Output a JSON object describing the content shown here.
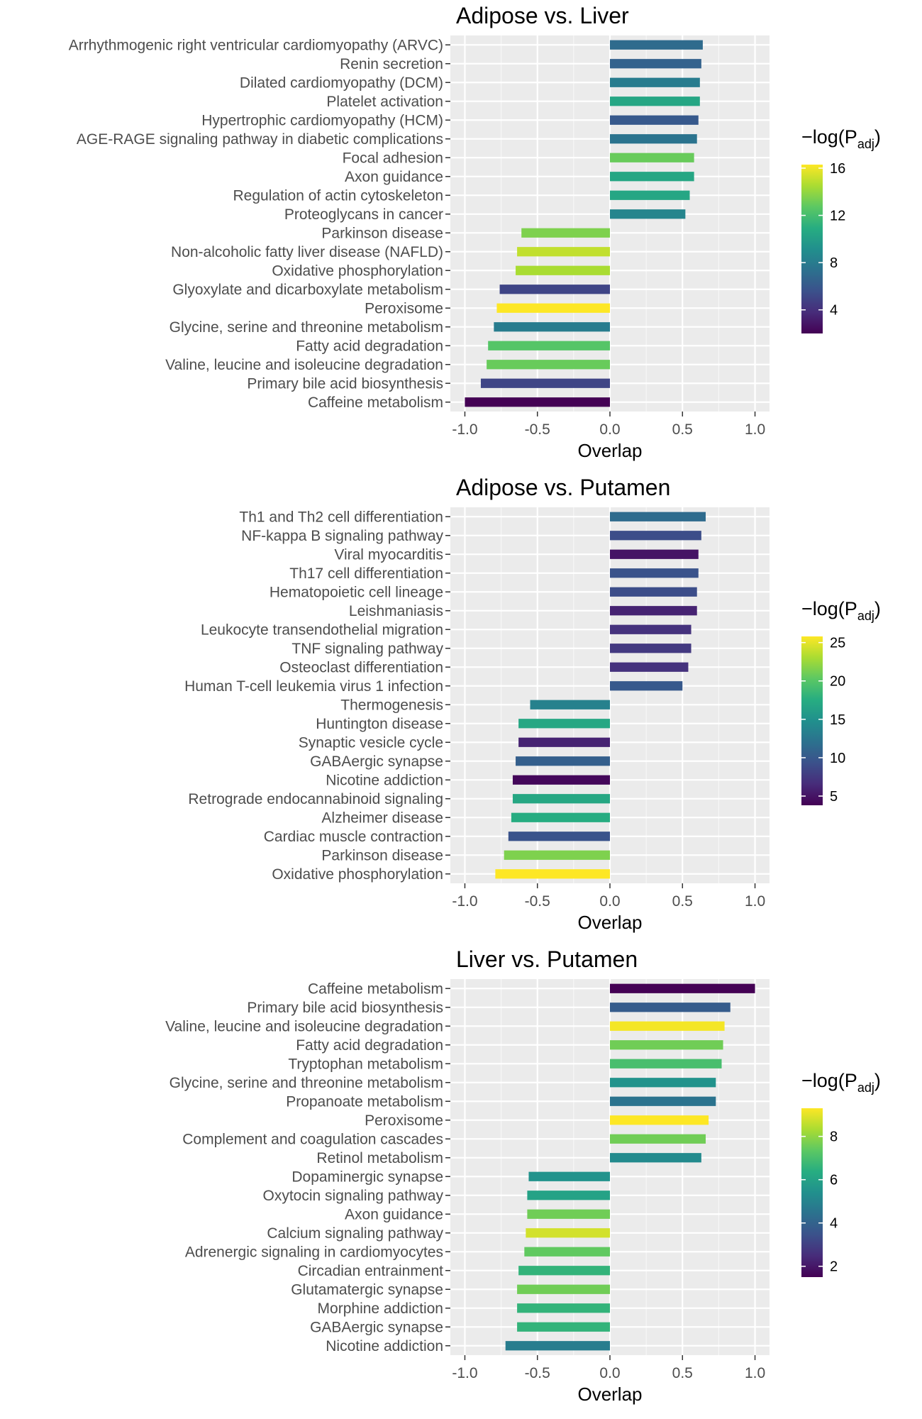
{
  "colorscale": [
    "#440154",
    "#472c7a",
    "#3b518b",
    "#2c718e",
    "#21908d",
    "#27ad81",
    "#5cc863",
    "#aadc32",
    "#fde725"
  ],
  "chart_data": [
    {
      "type": "bar",
      "orientation": "horizontal",
      "title": "Adipose vs. Liver",
      "xlabel": "Overlap",
      "xlim": [
        -1.1,
        1.1
      ],
      "xticks": [
        -1.0,
        -0.5,
        0.0,
        0.5,
        1.0
      ],
      "xtick_labels": [
        "-1.0",
        "-0.5",
        "0.0",
        "0.5",
        "1.0"
      ],
      "legend": {
        "title_main": "−log(P",
        "title_sub": "adj",
        "title_close": ")",
        "min": 2.0,
        "max": 16.3,
        "ticks": [
          4,
          8,
          12,
          16
        ],
        "tick_labels": [
          "4",
          "8",
          "12",
          "16"
        ]
      },
      "categories": [
        "Arrhythmogenic right ventricular cardiomyopathy (ARVC)",
        "Renin secretion",
        "Dilated cardiomyopathy (DCM)",
        "Platelet activation",
        "Hypertrophic cardiomyopathy (HCM)",
        "AGE-RAGE signaling pathway in diabetic complications",
        "Focal adhesion",
        "Axon guidance",
        "Regulation of actin cytoskeleton",
        "Proteoglycans in cancer",
        "Parkinson disease",
        "Non-alcoholic fatty liver disease (NAFLD)",
        "Oxidative phosphorylation",
        "Glyoxylate and dicarboxylate metabolism",
        "Peroxisome",
        "Glycine, serine and threonine metabolism",
        "Fatty acid degradation",
        "Valine, leucine and isoleucine degradation",
        "Primary bile acid biosynthesis",
        "Caffeine metabolism"
      ],
      "values": [
        0.64,
        0.63,
        0.62,
        0.62,
        0.61,
        0.6,
        0.58,
        0.58,
        0.55,
        0.52,
        -0.61,
        -0.64,
        -0.65,
        -0.76,
        -0.78,
        -0.8,
        -0.84,
        -0.85,
        -0.89,
        -1.0
      ],
      "neg_log_padj": [
        7.0,
        6.5,
        8.0,
        10.5,
        6.0,
        7.5,
        13.0,
        10.5,
        10.5,
        8.5,
        13.5,
        15.0,
        14.5,
        5.0,
        16.3,
        8.0,
        12.5,
        13.0,
        5.0,
        2.0
      ]
    },
    {
      "type": "bar",
      "orientation": "horizontal",
      "title": "Adipose vs. Putamen",
      "xlabel": "Overlap",
      "xlim": [
        -1.1,
        1.1
      ],
      "xticks": [
        -1.0,
        -0.5,
        0.0,
        0.5,
        1.0
      ],
      "xtick_labels": [
        "-1.0",
        "-0.5",
        "0.0",
        "0.5",
        "1.0"
      ],
      "legend": {
        "title_main": "−log(P",
        "title_sub": "adj",
        "title_close": ")",
        "min": 3.8,
        "max": 25.8,
        "ticks": [
          5,
          10,
          15,
          20,
          25
        ],
        "tick_labels": [
          "5",
          "10",
          "15",
          "20",
          "25"
        ]
      },
      "categories": [
        "Th1 and Th2 cell differentiation",
        "NF-kappa B signaling pathway",
        "Viral myocarditis",
        "Th17 cell differentiation",
        "Hematopoietic cell lineage",
        "Leishmaniasis",
        "Leukocyte transendothelial migration",
        "TNF signaling pathway",
        "Osteoclast differentiation",
        "Human T-cell leukemia virus 1 infection",
        "Thermogenesis",
        "Huntington disease",
        "Synaptic vesicle cycle",
        "GABAergic synapse",
        "Nicotine addiction",
        "Retrograde endocannabinoid signaling",
        "Alzheimer disease",
        "Cardiac muscle contraction",
        "Parkinson disease",
        "Oxidative phosphorylation"
      ],
      "values": [
        0.66,
        0.63,
        0.61,
        0.61,
        0.6,
        0.6,
        0.56,
        0.56,
        0.54,
        0.5,
        -0.55,
        -0.63,
        -0.63,
        -0.65,
        -0.67,
        -0.67,
        -0.68,
        -0.7,
        -0.73,
        -0.79
      ],
      "neg_log_padj": [
        11.5,
        9.0,
        5.0,
        9.5,
        9.0,
        6.0,
        7.0,
        7.5,
        7.0,
        10.0,
        13.5,
        17.0,
        6.0,
        10.5,
        4.2,
        17.0,
        17.5,
        9.5,
        21.5,
        25.8
      ]
    },
    {
      "type": "bar",
      "orientation": "horizontal",
      "title": "Liver vs. Putamen",
      "xlabel": "Overlap",
      "xlim": [
        -1.1,
        1.1
      ],
      "xticks": [
        -1.0,
        -0.5,
        0.0,
        0.5,
        1.0
      ],
      "xtick_labels": [
        "-1.0",
        "-0.5",
        "0.0",
        "0.5",
        "1.0"
      ],
      "legend": {
        "title_main": "−log(P",
        "title_sub": "adj",
        "title_close": ")",
        "min": 1.5,
        "max": 9.3,
        "ticks": [
          2,
          4,
          6,
          8
        ],
        "tick_labels": [
          "2",
          "4",
          "6",
          "8"
        ]
      },
      "categories": [
        "Caffeine metabolism",
        "Primary bile acid biosynthesis",
        "Valine, leucine and isoleucine degradation",
        "Fatty acid degradation",
        "Tryptophan metabolism",
        "Glycine, serine and threonine metabolism",
        "Propanoate metabolism",
        "Peroxisome",
        "Complement and coagulation cascades",
        "Retinol metabolism",
        "Dopaminergic synapse",
        "Oxytocin signaling pathway",
        "Axon guidance",
        "Calcium signaling pathway",
        "Adrenergic signaling in cardiomyocytes",
        "Circadian entrainment",
        "Glutamatergic synapse",
        "Morphine addiction",
        "GABAergic synapse",
        "Nicotine addiction"
      ],
      "values": [
        1.0,
        0.83,
        0.79,
        0.78,
        0.77,
        0.73,
        0.73,
        0.68,
        0.66,
        0.63,
        -0.56,
        -0.57,
        -0.57,
        -0.58,
        -0.59,
        -0.63,
        -0.64,
        -0.64,
        -0.64,
        -0.72
      ],
      "neg_log_padj": [
        1.5,
        3.8,
        9.2,
        7.6,
        7.0,
        5.5,
        4.5,
        9.3,
        7.6,
        5.2,
        5.5,
        6.0,
        7.6,
        8.8,
        7.4,
        6.6,
        7.6,
        6.6,
        6.6,
        4.8
      ]
    }
  ]
}
